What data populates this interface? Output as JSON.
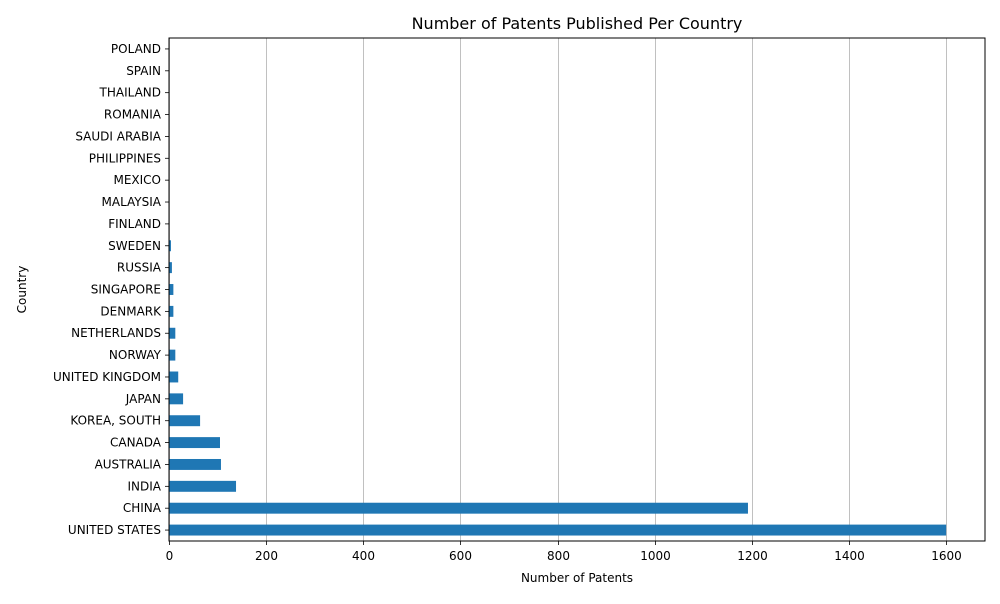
{
  "chart_data": {
    "type": "bar",
    "orientation": "horizontal",
    "title": "Number of Patents Published Per Country",
    "xlabel": "Number of Patents",
    "ylabel": "Country",
    "xlim": [
      0,
      1680
    ],
    "xticks": [
      0,
      200,
      400,
      600,
      800,
      1000,
      1200,
      1400,
      1600
    ],
    "grid": "vertical",
    "bar_color": "#1f77b4",
    "categories": [
      "UNITED STATES",
      "CHINA",
      "INDIA",
      "AUSTRALIA",
      "CANADA",
      "KOREA, SOUTH",
      "JAPAN",
      "UNITED KINGDOM",
      "NORWAY",
      "NETHERLANDS",
      "DENMARK",
      "SINGAPORE",
      "RUSSIA",
      "SWEDEN",
      "FINLAND",
      "MALAYSIA",
      "MEXICO",
      "PHILIPPINES",
      "SAUDI ARABIA",
      "ROMANIA",
      "THAILAND",
      "SPAIN",
      "POLAND"
    ],
    "values": [
      1600,
      1192,
      138,
      107,
      105,
      64,
      29,
      19,
      13,
      13,
      9,
      9,
      6,
      4,
      1,
      1,
      1,
      1,
      1,
      1,
      1,
      1,
      1
    ]
  }
}
